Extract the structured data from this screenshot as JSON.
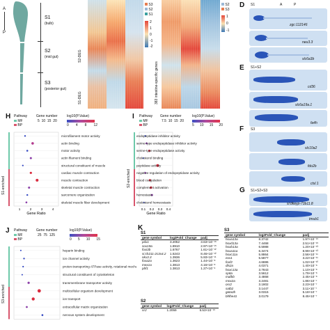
{
  "colors": {
    "s1": "#3aa0a0",
    "gut_green": "#6fa8a0",
    "mf": "#6dc9a9",
    "bp": "#d8556c",
    "heat_hi": "#e4473a",
    "heat_lo": "#3c78b4",
    "stain": "#2a55b8"
  },
  "panelA": {
    "axis_a": "A",
    "axis_p": "P",
    "regions": [
      {
        "name": "S1",
        "desc": "(bulb)"
      },
      {
        "name": "S2",
        "desc": "(mid gut)"
      },
      {
        "name": "S3",
        "desc": "(posterior gut)"
      }
    ]
  },
  "panelB": {
    "row_labels": [
      "S2-DEG",
      "S1-DEG"
    ],
    "legend": [
      "S3",
      "S2",
      "S1"
    ],
    "scale": [
      "2",
      "1",
      "0",
      "-1",
      "-2"
    ]
  },
  "panelC": {
    "row_label": "383 intestine-specific genes",
    "legend": [
      "S2",
      "S3"
    ],
    "scale": [
      "1",
      "0",
      "-1"
    ]
  },
  "panelD": {
    "label": "D",
    "cols": [
      "S1",
      "A",
      "P"
    ],
    "genes": [
      {
        "name": "zgc:112146"
      },
      {
        "name": "neu3.3"
      },
      {
        "name": "slc6a3b"
      }
    ]
  },
  "panelE": {
    "label": "E",
    "group": "S1+S2",
    "genes": [
      {
        "name": "cd36"
      },
      {
        "name": "slc6a19a.1"
      },
      {
        "name": "fa4h"
      }
    ]
  },
  "panelF": {
    "label": "F",
    "group": "S3",
    "genes": [
      {
        "name": "slc10a2"
      },
      {
        "name": "fdo2b"
      },
      {
        "name": "ctsl.1"
      }
    ]
  },
  "panelG": {
    "label": "G",
    "group": "S1+S2+S3",
    "genes": [
      {
        "name": "si:dkeyp-73b11.8"
      },
      {
        "name": "tmub1"
      }
    ]
  },
  "panelH": {
    "label": "H",
    "header": {
      "pathway": "Pathway",
      "gene_number": "Gene number",
      "pvalue": "log10(P.Value)",
      "legend_mf": "MF",
      "legend_bp": "BP",
      "sizes": [
        "5",
        "10",
        "15",
        "20"
      ],
      "p_scale": [
        "0",
        "4",
        "8",
        "12"
      ]
    },
    "side_label": "S1-enriched",
    "xlabel": "Gene Ratio",
    "xticks": [
      "1",
      "2",
      "3",
      "4"
    ],
    "terms": [
      "microfilament motor activity",
      "actin binding",
      "motor activity",
      "actin filament binding",
      "structural constituent of muscle",
      "cardiac muscle contraction",
      "muscle contraction",
      "skeletal muscle contraction",
      "sarcomere organization",
      "skeletal muscle fiber development"
    ]
  },
  "panelI": {
    "label": "I",
    "header": {
      "pathway": "Pathway",
      "gene_number": "Gene number",
      "pvalue": "log10(P.Value)",
      "legend_mf": "MF",
      "legend_bp": "BP",
      "sizes": [
        "7.5",
        "10",
        "15",
        "20"
      ],
      "p_scale": [
        "5",
        "10",
        "15",
        "20"
      ]
    },
    "side_label": "S2-enriched",
    "xlabel": "Gene Ratio",
    "xticks": [
      "0.1",
      "0.2",
      "0.3",
      "0.4"
    ],
    "terms": [
      "endopeptidase inhibitor activity",
      "serine-type endopeptidase inhibitor activity",
      "serine-type endopeptidase activity",
      "cholesterol binding",
      "peptidase activity",
      "negative regulation of endopeptidase activity",
      "blood coagulation",
      "complement activation",
      "hemostasis",
      "cholesterol homeostasis"
    ]
  },
  "panelJ": {
    "label": "J",
    "header": {
      "pathway": "Pathway",
      "gene_number": "Gene number",
      "pvalue": "log10(P.Value)",
      "legend_mf": "MF",
      "legend_bp": "BP",
      "sizes": [
        "25",
        "75",
        "125"
      ],
      "p_scale": [
        "0",
        "5",
        "10",
        "15"
      ]
    },
    "side_label": "S3-enriched",
    "terms": [
      "heparin binding",
      "ion channel activity",
      "proton-transporting ATPase activity, rotational mechanism",
      "structural constituent of cytoskeleton",
      "transmembrane transporter activity",
      "multicellular organism development",
      "ion transport",
      "extracellular matrix organization",
      "nervous system development"
    ]
  },
  "panelK": {
    "label": "K",
    "col_gene": "gene symbol",
    "col_fc": "log2Fold_Change",
    "col_padj": "padj",
    "s1": {
      "title": "S1",
      "rows": [
        {
          "gene": "pdx1",
          "fc": "3.2052",
          "padj": "3.63×10⁻¹⁶"
        },
        {
          "gene": "sox19a",
          "fc": "1.8910",
          "padj": "2.97×10⁻¹⁵"
        },
        {
          "gene": "foxi3b",
          "fc": "1.6767",
          "padj": "1.61×10⁻¹²"
        },
        {
          "gene": "si:ch211-2c3x4.2",
          "fc": "1.5243",
          "padj": "8.46×10⁻¹²"
        },
        {
          "gene": "nkx3.3",
          "fc": "1.3936",
          "padj": "5.93×10⁻¹¹"
        },
        {
          "gene": "foxa2a",
          "fc": "1.3623",
          "padj": "1.44×10⁻⁸"
        },
        {
          "gene": "mex1a",
          "fc": "1.3813",
          "padj": "4.16×10⁻⁸"
        },
        {
          "gene": "pbf1",
          "fc": "1.3813",
          "padj": "1.27×10⁻⁶"
        }
      ]
    },
    "s2": {
      "title": "S2",
      "rows": [
        {
          "gene": "nr2",
          "fc": "1.2059",
          "padj": "5.53×10⁻¹⁵"
        }
      ]
    },
    "s3": {
      "title": "S3",
      "rows": [
        {
          "gene": "hoxa13a",
          "fc": "8.3742",
          "padj": "1.97×10⁻¹⁵"
        },
        {
          "gene": "hoxd13a",
          "fc": "7.4468",
          "padj": "2.51×10⁻¹⁵"
        },
        {
          "gene": "hoxb13a",
          "fc": "6.5988",
          "padj": "1.20×10⁻¹³"
        },
        {
          "gene": "hoxa11a",
          "fc": "6.3474",
          "padj": "8.99×10⁻¹³"
        },
        {
          "gene": "hoxc11a",
          "fc": "5.8864",
          "padj": "2.56×10⁻¹¹"
        },
        {
          "gene": "evx1",
          "fc": "5.5877",
          "padj": "3.22×10⁻¹¹"
        },
        {
          "gene": "foxf2",
          "fc": "4.6886",
          "padj": "1.02×10⁻¹⁰"
        },
        {
          "gene": "dlx2a",
          "fc": "4.0371",
          "padj": "1.40×10⁻⁸"
        },
        {
          "gene": "hoxc13a",
          "fc": "3.7843",
          "padj": "1.10×10⁻⁸"
        },
        {
          "gene": "sp8a",
          "fc": "3.5612",
          "padj": "1.79×10⁻⁸"
        },
        {
          "gene": "mafbb",
          "fc": "3.4868",
          "padj": "2.45×10⁻⁸"
        },
        {
          "gene": "mnx2a",
          "fc": "3.2481",
          "padj": "1.86×10⁻⁷"
        },
        {
          "gene": "osr2",
          "fc": "3.1802",
          "padj": "2.23×10⁻⁷"
        },
        {
          "gene": "satb2",
          "fc": "3.1447",
          "padj": "3.11×10⁻⁷"
        },
        {
          "gene": "gata2b",
          "fc": "3.0315",
          "padj": "5.18×10⁻⁷"
        },
        {
          "gene": "bhlhe41",
          "fc": "3.0179",
          "padj": "8.45×10⁻⁷"
        }
      ]
    }
  }
}
